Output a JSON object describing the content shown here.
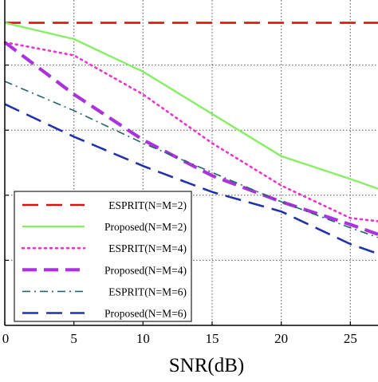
{
  "chart_data": {
    "type": "line",
    "title": "",
    "xlabel": "SNR(dB)",
    "ylabel": "",
    "xlim": [
      0,
      27
    ],
    "ylim": [
      0,
      1
    ],
    "x_ticks": [
      0,
      5,
      10,
      15,
      20,
      25
    ],
    "x_tick_labels": [
      "0",
      "5",
      "10",
      "15",
      "20",
      "25"
    ],
    "y_grid_levels": [
      0.2,
      0.4,
      0.6,
      0.8
    ],
    "y_tick_labels": [
      "",
      "",
      "",
      "",
      ""
    ],
    "grid": true,
    "legend_position": "bottom-left",
    "series": [
      {
        "name": "ESPRIT(N=M=2)",
        "color": "#dd1111",
        "dash": "long-dash",
        "x": [
          0,
          27
        ],
        "y": [
          0.93,
          0.93
        ]
      },
      {
        "name": "Proposed(N=M=2)",
        "color": "#88ee66",
        "dash": "solid",
        "x": [
          0,
          5,
          10,
          15,
          20,
          25,
          27
        ],
        "y": [
          0.93,
          0.88,
          0.78,
          0.65,
          0.52,
          0.45,
          0.42
        ]
      },
      {
        "name": "ESPRIT(N=M=4)",
        "color": "#ee33cc",
        "dash": "dotted",
        "x": [
          0,
          5,
          10,
          15,
          20,
          25,
          27
        ],
        "y": [
          0.87,
          0.83,
          0.71,
          0.56,
          0.43,
          0.33,
          0.32
        ]
      },
      {
        "name": "Proposed(N=M=4)",
        "color": "#aa33dd",
        "dash": "dashed",
        "x": [
          0,
          5,
          10,
          15,
          20,
          25,
          27
        ],
        "y": [
          0.87,
          0.71,
          0.57,
          0.46,
          0.38,
          0.31,
          0.28
        ]
      },
      {
        "name": "ESPRIT(N=M=6)",
        "color": "#226666",
        "dash": "dash-dot",
        "x": [
          0,
          5,
          10,
          15,
          20,
          25,
          27
        ],
        "y": [
          0.75,
          0.66,
          0.56,
          0.47,
          0.38,
          0.3,
          0.27
        ]
      },
      {
        "name": "Proposed(N=M=6)",
        "color": "#2233aa",
        "dash": "long-dash",
        "x": [
          0,
          5,
          10,
          15,
          20,
          25,
          27
        ],
        "y": [
          0.68,
          0.58,
          0.49,
          0.41,
          0.35,
          0.25,
          0.22
        ]
      }
    ]
  }
}
